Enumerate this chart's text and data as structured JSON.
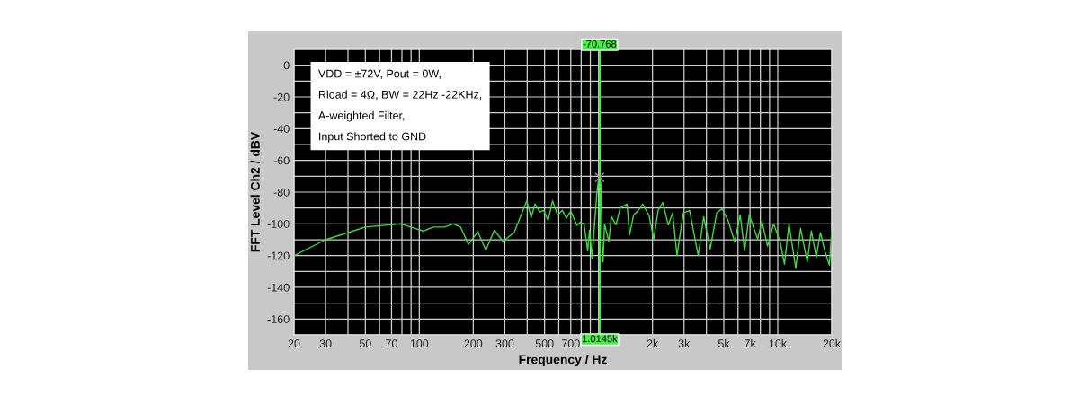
{
  "chart_data": {
    "type": "line",
    "xlabel": "Frequency / Hz",
    "ylabel": "FFT Level Ch2 / dBV",
    "log": "x",
    "grid": true,
    "marker": "none",
    "line_style": "solid",
    "xlim": [
      20,
      20000
    ],
    "ylim": [
      -170,
      10
    ],
    "xticks": [
      20,
      30,
      {
        "value": 40,
        "label": null
      },
      50,
      {
        "value": 60,
        "label": null
      },
      70,
      {
        "value": 80,
        "label": null
      },
      {
        "value": 90,
        "label": null
      },
      100,
      200,
      300,
      {
        "value": 400,
        "label": null
      },
      500,
      {
        "value": 600,
        "label": null
      },
      700,
      {
        "value": 800,
        "label": null
      },
      {
        "value": 900,
        "label": null
      },
      {
        "value": 1000,
        "label": null
      },
      {
        "value": 2000,
        "label": "2k"
      },
      {
        "value": 3000,
        "label": "3k"
      },
      {
        "value": 4000,
        "label": null
      },
      {
        "value": 5000,
        "label": "5k"
      },
      {
        "value": 6000,
        "label": null
      },
      {
        "value": 7000,
        "label": "7k"
      },
      {
        "value": 8000,
        "label": null
      },
      {
        "value": 9000,
        "label": null
      },
      {
        "value": 10000,
        "label": "10k"
      },
      {
        "value": 20000,
        "label": "20k"
      }
    ],
    "yticks": [
      {
        "value": -170,
        "label": null
      },
      -160,
      {
        "value": -150,
        "label": null
      },
      -140,
      {
        "value": -130,
        "label": null
      },
      -120,
      {
        "value": -110,
        "label": null
      },
      -100,
      {
        "value": -90,
        "label": null
      },
      -80,
      {
        "value": -70,
        "label": null
      },
      -60,
      {
        "value": -50,
        "label": null
      },
      -40,
      {
        "value": -30,
        "label": null
      },
      -20,
      {
        "value": -10,
        "label": null
      },
      0,
      {
        "value": 10,
        "label": null
      }
    ],
    "series": [
      {
        "color": "#3fdc3f",
        "x": [
          20,
          30,
          50,
          79,
          105,
          120,
          138,
          155,
          170,
          188,
          212,
          235,
          262,
          293,
          338,
          398,
          421,
          442,
          471,
          494,
          523,
          554,
          591,
          628,
          662,
          700,
          758,
          790,
          830,
          870,
          890,
          920,
          950,
          980,
          1000,
          1014.5,
          1030,
          1045,
          1060,
          1080,
          1141,
          1181,
          1251,
          1322,
          1442,
          1490,
          1570,
          1668,
          1765,
          1917,
          2032,
          2150,
          2280,
          2450,
          2590,
          2740,
          2970,
          3220,
          3400,
          3600,
          3860,
          4200,
          4560,
          4890,
          5300,
          5750,
          6170,
          6530,
          6930,
          7720,
          8160,
          8770,
          9480,
          10300,
          10900,
          11550,
          12600,
          13400,
          14600,
          15400,
          16400,
          17300,
          18300,
          19400,
          20000
        ],
        "values": [
          -120,
          -110,
          -102,
          -100,
          -104.5,
          -102,
          -102,
          -100,
          -102,
          -113,
          -105,
          -116.5,
          -104,
          -111,
          -105.5,
          -85.5,
          -96,
          -87.5,
          -92.5,
          -91.5,
          -98,
          -85.5,
          -94.5,
          -91.5,
          -96.5,
          -92,
          -101,
          -99,
          -100,
          -117,
          -104,
          -121.5,
          -100,
          -80,
          -72,
          -71,
          -75,
          -110,
          -124,
          -100,
          -111,
          -95.5,
          -100.6,
          -90,
          -87.6,
          -106.8,
          -94.4,
          -91.5,
          -87.6,
          -95,
          -109.6,
          -91.5,
          -86.5,
          -100.6,
          -93.2,
          -120,
          -93.2,
          -91.5,
          -105.6,
          -120,
          -95.5,
          -115.8,
          -93.2,
          -90.4,
          -98.3,
          -111.3,
          -94.4,
          -117,
          -94.3,
          -109.6,
          -98.3,
          -114,
          -100,
          -111,
          -125.4,
          -100,
          -128,
          -102.8,
          -124,
          -104.5,
          -120.9,
          -105.6,
          -117,
          -126,
          -104
        ]
      }
    ],
    "ref_lines": [
      {
        "axis": "x",
        "value": 1014.5,
        "label": "1.0145k",
        "color": "#44ee44"
      }
    ],
    "annotations": [
      "VDD = ±72V, Pout = 0W,",
      "Rload = 4Ω, BW = 22Hz -22KHz,",
      "A-weighted Filter,",
      "Input Shorted to GND",
      {
        "text": "-70.768",
        "x": 1014.5,
        "y": -70.768
      }
    ]
  }
}
